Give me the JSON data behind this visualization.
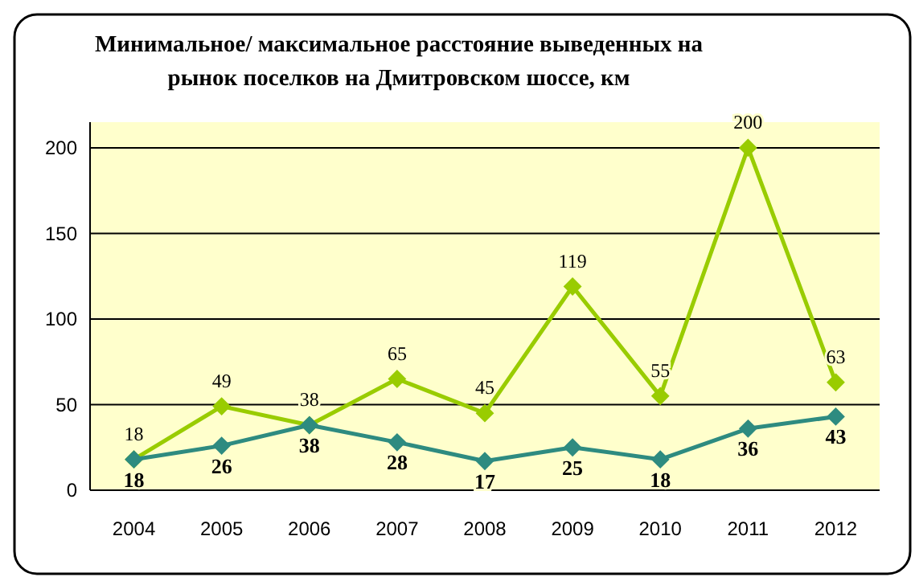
{
  "chart_data": {
    "type": "line",
    "title": "Минимальное/ максимальное расстояние выведенных на рынок поселков на Дмитровском шоссе, км",
    "categories": [
      "2004",
      "2005",
      "2006",
      "2007",
      "2008",
      "2009",
      "2010",
      "2011",
      "2012"
    ],
    "series": [
      {
        "color": "#99cc00",
        "values": [
          18,
          49,
          38,
          65,
          45,
          119,
          55,
          200,
          63
        ]
      },
      {
        "color": "#2e8b80",
        "values": [
          18,
          26,
          38,
          28,
          17,
          25,
          18,
          36,
          43
        ]
      }
    ],
    "ylim": [
      0,
      215
    ],
    "yticks": [
      0,
      50,
      100,
      150,
      200
    ],
    "grid": "y",
    "marker": "diamond",
    "data_labels": true
  }
}
